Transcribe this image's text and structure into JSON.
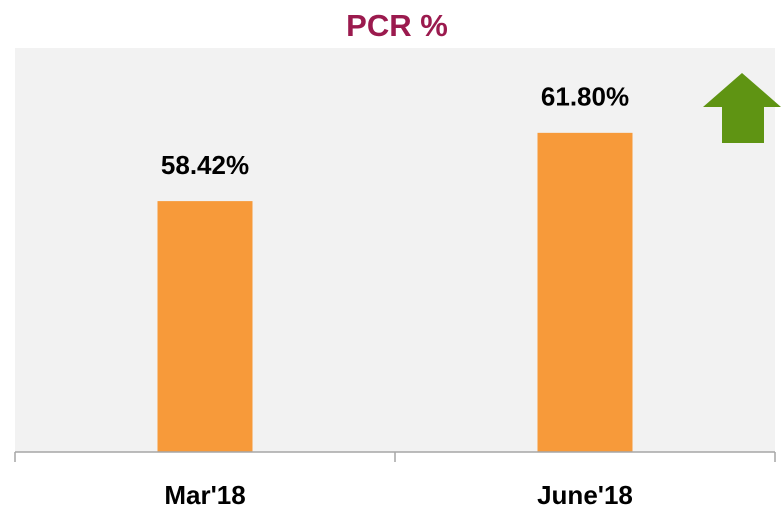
{
  "chart_data": {
    "type": "bar",
    "title": "PCR %",
    "categories": [
      "Mar'18",
      "June'18"
    ],
    "values": [
      58.42,
      61.8
    ],
    "value_labels": [
      "58.42%",
      "61.80%"
    ],
    "color": "#f79a3a",
    "ylim": [
      46,
      66
    ]
  }
}
